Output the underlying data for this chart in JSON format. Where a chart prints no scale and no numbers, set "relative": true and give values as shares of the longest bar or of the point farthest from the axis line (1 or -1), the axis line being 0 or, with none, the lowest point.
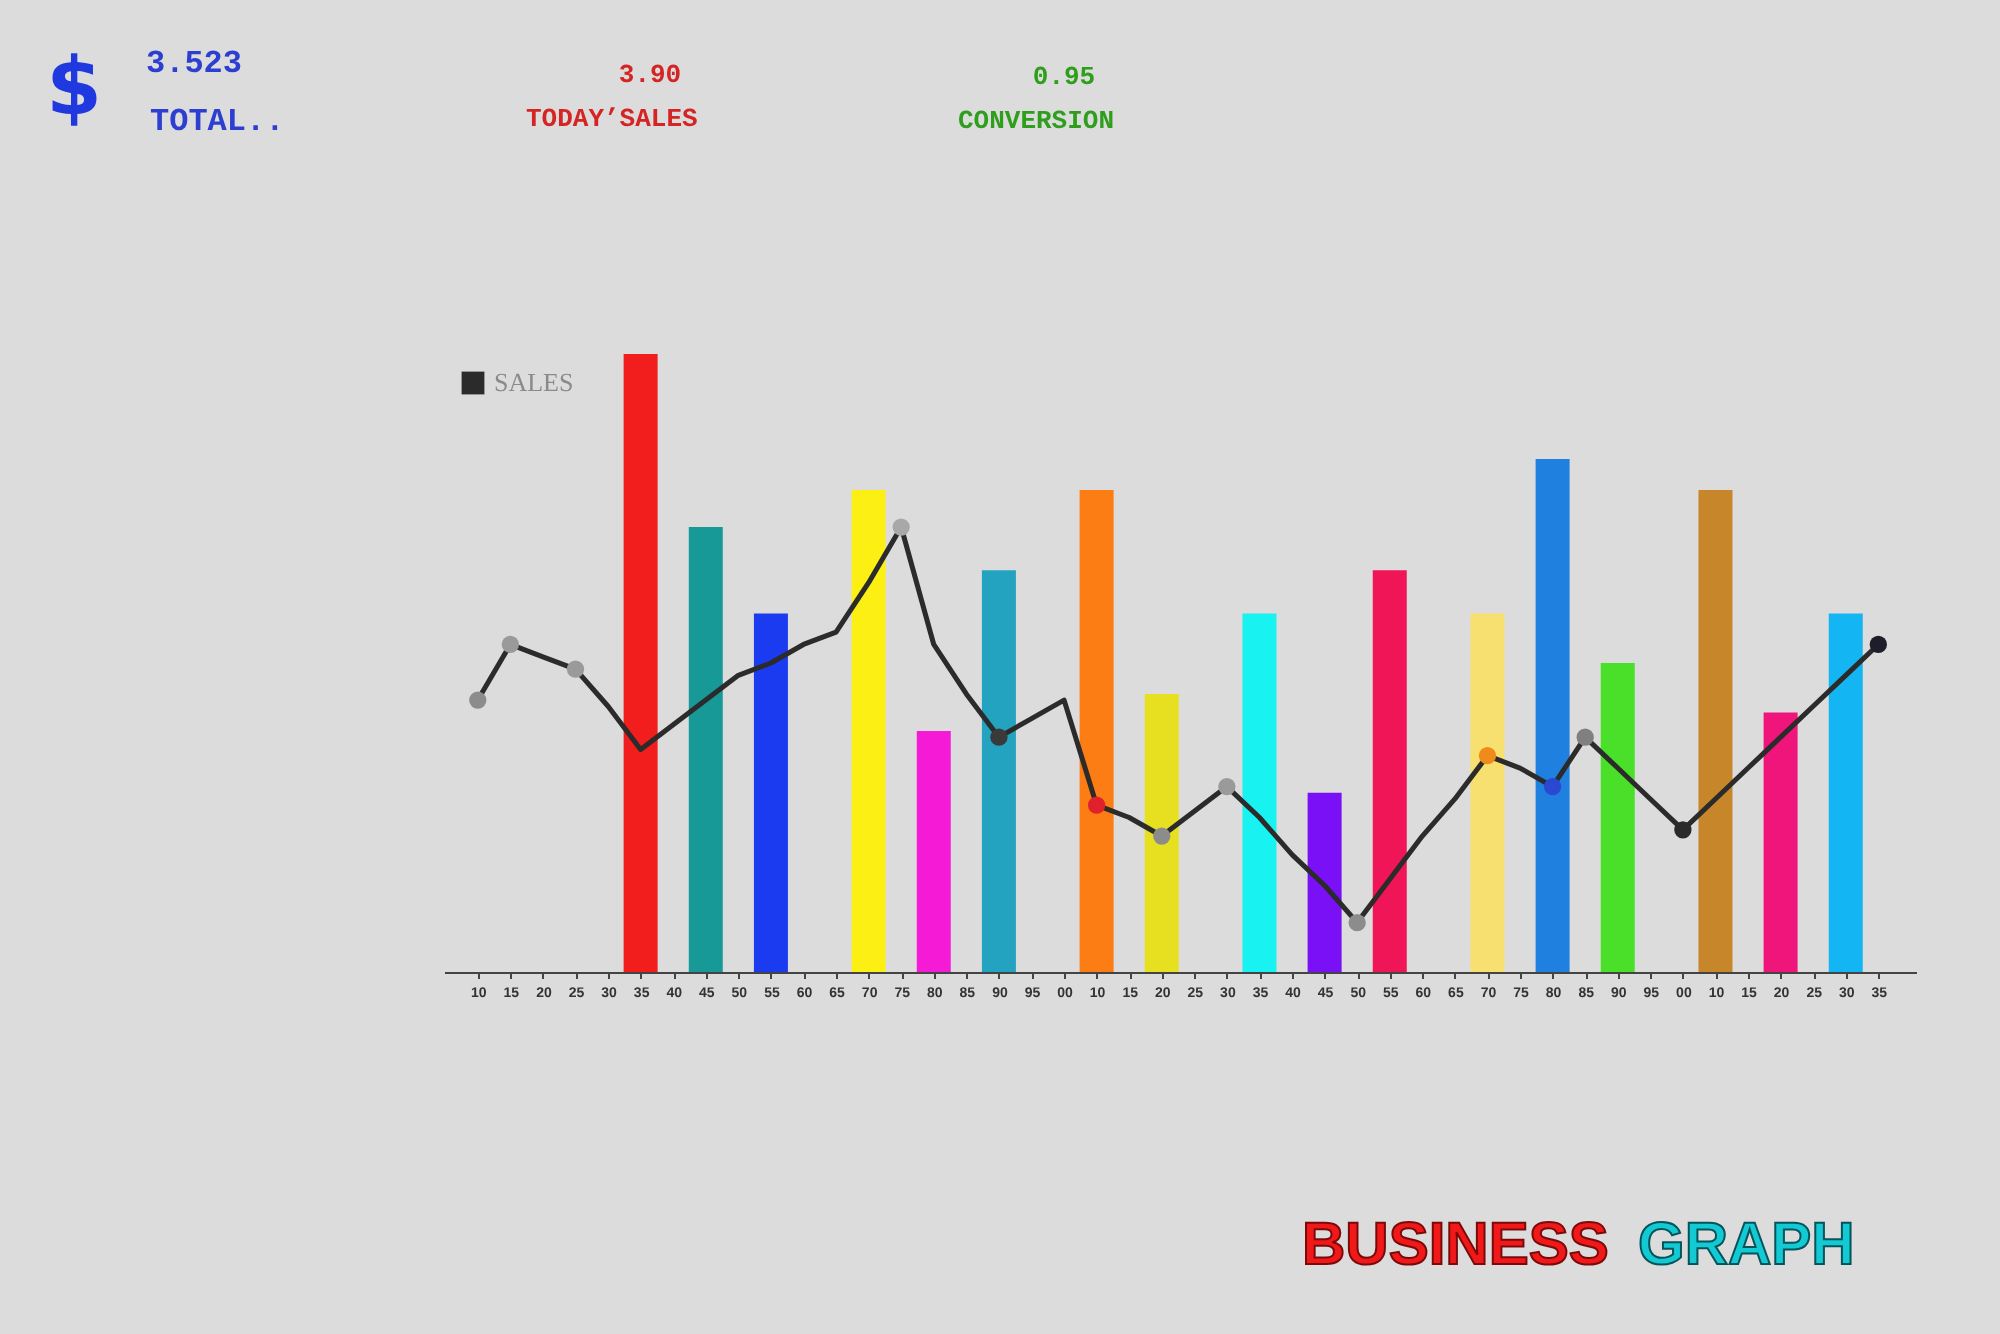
{
  "chart_data": {
    "type": "bar",
    "relative": true,
    "legend": "top left",
    "line_style": "solid",
    "annotations": [
      "$",
      "3.523",
      "TOTAL..",
      "3.90",
      "TODAY’SALES",
      "0.95",
      "CONVERSION",
      "BUSINESS",
      "GRAPH"
    ],
    "categories": [
      "10",
      "15",
      "20",
      "25",
      "30",
      "35",
      "40",
      "45",
      "50",
      "55",
      "60",
      "65",
      "70",
      "75",
      "80",
      "85",
      "90",
      "95",
      "00",
      "10",
      "15",
      "20",
      "25",
      "30",
      "35",
      "40",
      "45",
      "50",
      "55",
      "60",
      "65",
      "70",
      "75",
      "80",
      "85",
      "90",
      "95",
      "00",
      "10",
      "15",
      "20",
      "25",
      "30",
      "35"
    ],
    "series": [
      {
        "values": [
          null,
          null,
          null,
          null,
          null,
          1.0,
          null,
          0.72,
          null,
          0.58,
          null,
          null,
          0.78,
          null,
          0.39,
          null,
          0.65,
          null,
          null,
          0.78,
          null,
          0.45,
          null,
          null,
          0.58,
          null,
          0.29,
          null,
          0.65,
          null,
          null,
          0.58,
          null,
          0.83,
          null,
          0.5,
          null,
          null,
          0.78,
          null,
          0.42,
          null,
          0.58,
          null
        ],
        "colors": [
          null,
          null,
          null,
          null,
          null,
          "#f21d1d",
          null,
          "#179a97",
          null,
          "#1a3bf0",
          null,
          null,
          "#fbef14",
          null,
          "#f51ad6",
          null,
          "#23a3bf",
          null,
          null,
          "#fb7d14",
          null,
          "#e6e020",
          null,
          null,
          "#18f2f0",
          null,
          "#7a10f5",
          null,
          "#f01557",
          null,
          null,
          "#f8e070",
          null,
          "#1f80e0",
          null,
          "#4ae02a",
          null,
          null,
          "#c8862a",
          null,
          "#f0157a",
          null,
          "#13b6f2",
          null
        ]
      },
      {
        "type": "line",
        "name": "SALES",
        "color": "#2b2b2b",
        "values": [
          0.44,
          0.53,
          0.51,
          0.49,
          0.43,
          0.36,
          0.4,
          0.44,
          0.48,
          0.5,
          0.53,
          0.55,
          0.63,
          0.72,
          0.53,
          0.45,
          0.38,
          0.41,
          0.44,
          0.27,
          0.25,
          0.22,
          0.26,
          0.3,
          0.25,
          0.19,
          0.14,
          0.08,
          0.15,
          0.22,
          0.28,
          0.35,
          0.33,
          0.3,
          0.38,
          0.33,
          0.28,
          0.23,
          0.28,
          0.33,
          0.38,
          0.43,
          0.48,
          0.53
        ]
      },
      {
        "type": "scatter",
        "marker": "circle",
        "values": [
          0.44,
          0.53,
          null,
          0.49,
          null,
          null,
          null,
          null,
          null,
          null,
          null,
          null,
          null,
          0.72,
          null,
          null,
          0.38,
          null,
          null,
          0.27,
          null,
          0.22,
          null,
          0.3,
          null,
          null,
          null,
          0.08,
          null,
          null,
          null,
          0.35,
          null,
          0.3,
          0.38,
          null,
          null,
          0.23,
          null,
          null,
          null,
          null,
          null,
          0.53
        ],
        "colors": [
          "#8c8c8c",
          "#9a9a9a",
          null,
          "#9a9a9a",
          null,
          null,
          null,
          null,
          null,
          null,
          null,
          null,
          null,
          "#a8a8a8",
          null,
          null,
          "#3a3a3a",
          null,
          null,
          "#e0202a",
          null,
          "#8c8c8c",
          null,
          "#9a9a9a",
          null,
          null,
          null,
          "#8c8c8c",
          null,
          null,
          null,
          "#f08a1a",
          null,
          "#2a48d0",
          "#808080",
          null,
          null,
          "#2a2a2a",
          null,
          null,
          null,
          null,
          null,
          "#1e1e2a"
        ]
      }
    ]
  }
}
